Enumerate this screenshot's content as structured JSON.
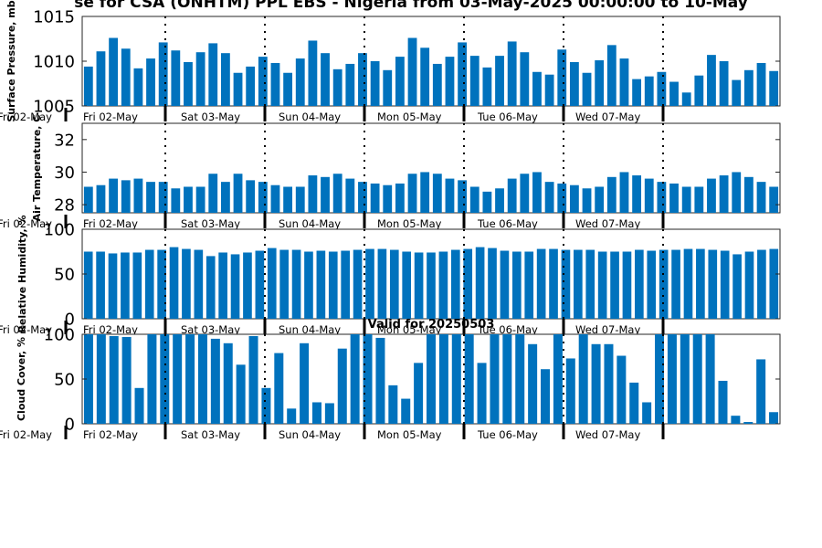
{
  "figure": {
    "title": "se for CSA (ONHTM) PPL EBS  - Nigeria from 03-May-2025 00:00:00 to 10-May",
    "bar_color": "#0072bd"
  },
  "chart_data": [
    {
      "type": "bar",
      "ylabel": "Surface Pressure, mb",
      "yticks": [
        "1015",
        "1010",
        "1005"
      ],
      "ylim": [
        1005,
        1015
      ],
      "values": [
        1009.4,
        1011.1,
        1012.6,
        1011.4,
        1009.2,
        1010.3,
        1012.1,
        1011.2,
        1009.9,
        1011.0,
        1012.0,
        1010.9,
        1008.7,
        1009.4,
        1010.5,
        1009.8,
        1008.7,
        1010.3,
        1012.3,
        1010.9,
        1009.1,
        1009.7,
        1010.9,
        1010.0,
        1009.0,
        1010.5,
        1012.6,
        1011.5,
        1009.7,
        1010.5,
        1012.1,
        1010.6,
        1009.3,
        1010.6,
        1012.2,
        1011.0,
        1008.8,
        1008.5,
        1011.3,
        1009.9,
        1008.7,
        1010.1,
        1011.8,
        1010.3,
        1008.0,
        1008.3,
        1008.8,
        1007.7,
        1006.5,
        1008.4,
        1010.7,
        1010.0,
        1007.9,
        1009.0,
        1009.8,
        1008.9
      ],
      "day_labels": [
        "Fri 02-May",
        "Sat 03-May",
        "Sun 04-May",
        "Mon 05-May",
        "Tue 06-May",
        "Wed 07-May"
      ],
      "edge_label": "Fri 02-May",
      "panel_title": ""
    },
    {
      "type": "bar",
      "ylabel": "Air Temperature, C",
      "yticks": [
        "32",
        "30",
        "28"
      ],
      "ylim": [
        27.5,
        33
      ],
      "values": [
        29.1,
        29.2,
        29.6,
        29.5,
        29.6,
        29.4,
        29.4,
        29.0,
        29.1,
        29.1,
        29.9,
        29.4,
        29.9,
        29.5,
        29.4,
        29.2,
        29.1,
        29.1,
        29.8,
        29.7,
        29.9,
        29.6,
        29.4,
        29.3,
        29.2,
        29.3,
        29.9,
        30.0,
        29.9,
        29.6,
        29.5,
        29.1,
        28.8,
        29.0,
        29.6,
        29.9,
        30.0,
        29.4,
        29.3,
        29.2,
        29.0,
        29.1,
        29.7,
        30.0,
        29.8,
        29.6,
        29.4,
        29.3,
        29.1,
        29.1,
        29.6,
        29.8,
        30.0,
        29.7,
        29.4,
        29.1
      ],
      "day_labels": [
        "Fri 02-May",
        "Sat 03-May",
        "Sun 04-May",
        "Mon 05-May",
        "Tue 06-May",
        "Wed 07-May"
      ],
      "edge_label": "Fri 02-May",
      "panel_title": ""
    },
    {
      "type": "bar",
      "ylabel": "Relative Humidity, %",
      "yticks": [
        "100",
        "50",
        "0"
      ],
      "ylim": [
        0,
        100
      ],
      "values": [
        75,
        75,
        73,
        74,
        74,
        77,
        77,
        80,
        78,
        77,
        70,
        74,
        72,
        74,
        76,
        79,
        77,
        77,
        75,
        76,
        75,
        76,
        77,
        78,
        78,
        77,
        75,
        74,
        74,
        75,
        77,
        78,
        80,
        79,
        76,
        75,
        75,
        78,
        78,
        77,
        77,
        77,
        75,
        75,
        75,
        77,
        76,
        77,
        77,
        78,
        78,
        77,
        76,
        72,
        75,
        77,
        78
      ],
      "day_labels": [
        "Fri 02-May",
        "Sat 03-May",
        "Sun 04-May",
        "Mon 05-May",
        "Tue 06-May",
        "Wed 07-May"
      ],
      "edge_label": "Fri 02-May",
      "panel_title": ""
    },
    {
      "type": "bar",
      "ylabel": "Cloud Cover, %",
      "yticks": [
        "100",
        "50",
        "0"
      ],
      "ylim": [
        0,
        100
      ],
      "values": [
        100,
        100,
        98,
        97,
        40,
        100,
        100,
        100,
        100,
        100,
        95,
        90,
        66,
        98,
        40,
        79,
        17,
        90,
        24,
        23,
        84,
        100,
        100,
        96,
        43,
        28,
        68,
        100,
        100,
        100,
        100,
        68,
        100,
        100,
        100,
        89,
        61,
        100,
        73,
        100,
        89,
        89,
        76,
        46,
        24,
        100,
        100,
        100,
        100,
        100,
        48,
        9,
        2,
        72,
        13
      ],
      "day_labels": [
        "Fri 02-May",
        "Sat 03-May",
        "Sun 04-May",
        "Mon 05-May",
        "Tue 06-May",
        "Wed 07-May"
      ],
      "edge_label": "Fri 02-May",
      "panel_title": "Valid for 20250503"
    }
  ]
}
